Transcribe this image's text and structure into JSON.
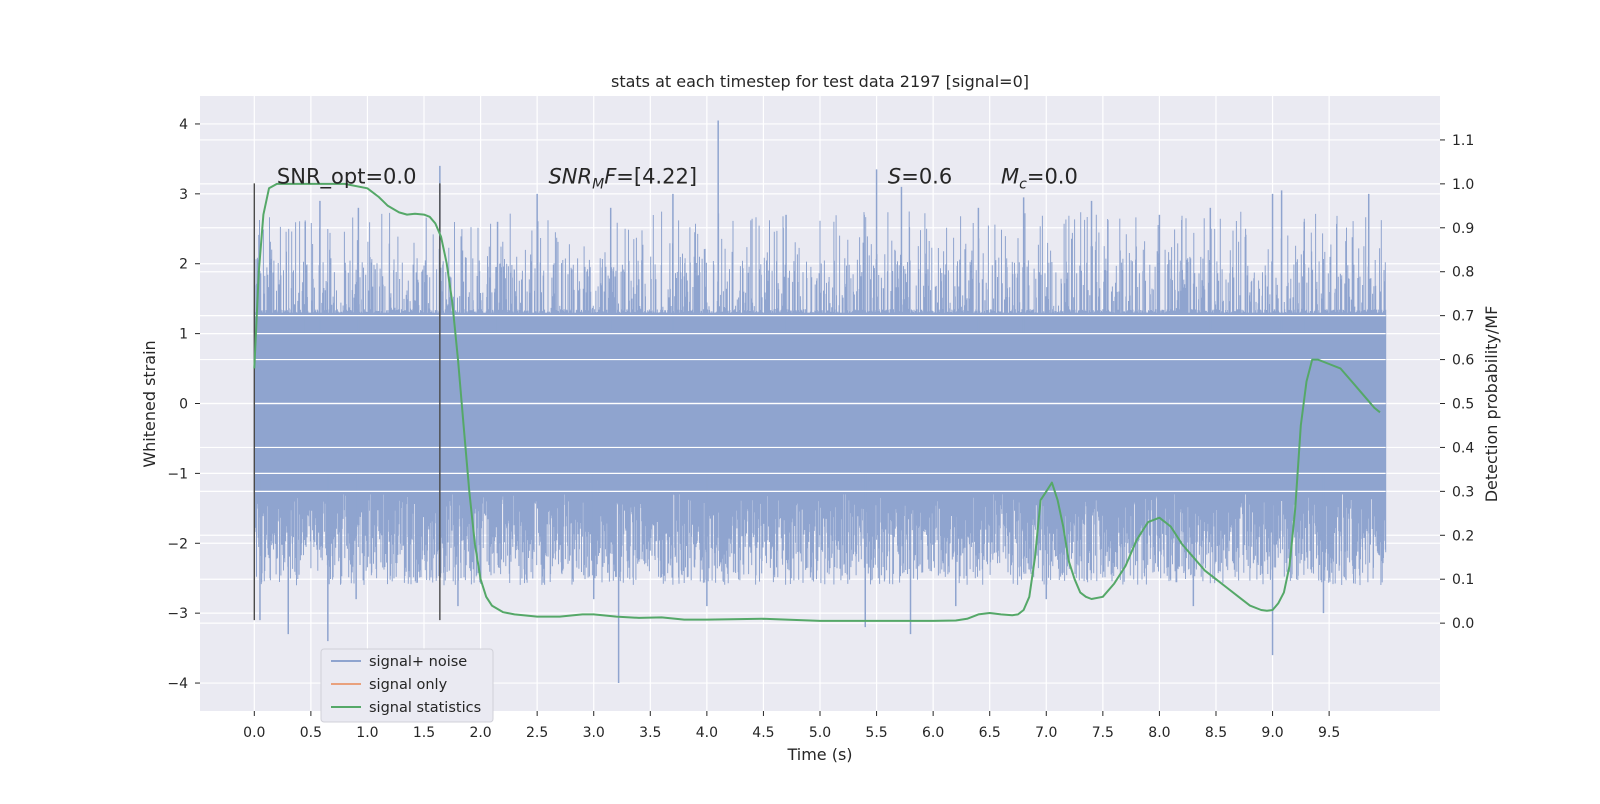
{
  "chart_data": {
    "type": "line",
    "title": "stats at each timestep for test data 2197 [signal=0]",
    "xlabel": "Time (s)",
    "ylabel_left": "Whitened strain",
    "ylabel_right": "Detection probability/MF",
    "xlim": [
      -0.48,
      10.48
    ],
    "ylim_left": [
      -4.4,
      4.4
    ],
    "ylim_right": [
      -0.2,
      1.2
    ],
    "xticks": [
      "0.0",
      "0.5",
      "1.0",
      "1.5",
      "2.0",
      "2.5",
      "3.0",
      "3.5",
      "4.0",
      "4.5",
      "5.0",
      "5.5",
      "6.0",
      "6.5",
      "7.0",
      "7.5",
      "8.0",
      "8.5",
      "9.0",
      "9.5"
    ],
    "yticks_left": [
      "4",
      "3",
      "2",
      "1",
      "0",
      "−1",
      "−2",
      "−3",
      "−4"
    ],
    "yticks_right": [
      "1.1",
      "1.0",
      "0.9",
      "0.8",
      "0.7",
      "0.6",
      "0.5",
      "0.4",
      "0.3",
      "0.2",
      "0.1",
      "0.0"
    ],
    "grid": true,
    "legend_position": "lower-left",
    "annotations": [
      {
        "text": "SNR_opt=0.0",
        "x": 0.2,
        "y": 3.25
      },
      {
        "base": "SNR",
        "sub": "M",
        "tail": "F=[4.22]",
        "x": 2.6,
        "y": 3.25
      },
      {
        "base": "S",
        "sub": "",
        "tail": "=0.6",
        "x": 5.6,
        "y": 3.25
      },
      {
        "base": "M",
        "sub": "c",
        "tail": "=0.0",
        "x": 6.6,
        "y": 3.25
      }
    ],
    "vlines": [
      {
        "x": 0.0,
        "ymin": -3.1,
        "ymax": 3.15
      },
      {
        "x": 1.64,
        "ymin": -3.1,
        "ymax": 3.15
      }
    ],
    "series": [
      {
        "name": "signal+ noise",
        "color": "#8fa4cf",
        "axis": "left",
        "t_start": 0.0,
        "t_end": 10.0,
        "dense_band": [
          -1.3,
          1.3
        ],
        "peaks": [
          {
            "x": 0.45,
            "y": 2.6
          },
          {
            "x": 0.58,
            "y": 2.9
          },
          {
            "x": 0.92,
            "y": 2.8
          },
          {
            "x": 1.64,
            "y": 3.4
          },
          {
            "x": 2.15,
            "y": 2.6
          },
          {
            "x": 2.5,
            "y": 3.0
          },
          {
            "x": 3.15,
            "y": 2.8
          },
          {
            "x": 3.7,
            "y": 3.0
          },
          {
            "x": 4.1,
            "y": 4.05
          },
          {
            "x": 4.7,
            "y": 2.7
          },
          {
            "x": 5.5,
            "y": 3.35
          },
          {
            "x": 5.72,
            "y": 3.1
          },
          {
            "x": 6.4,
            "y": 2.8
          },
          {
            "x": 6.8,
            "y": 2.95
          },
          {
            "x": 7.4,
            "y": 2.9
          },
          {
            "x": 8.0,
            "y": 2.7
          },
          {
            "x": 8.45,
            "y": 2.8
          },
          {
            "x": 9.0,
            "y": 3.0
          },
          {
            "x": 9.08,
            "y": 3.05
          },
          {
            "x": 9.28,
            "y": 2.6
          },
          {
            "x": 9.85,
            "y": 3.0
          }
        ],
        "troughs": [
          {
            "x": 0.05,
            "y": -3.1
          },
          {
            "x": 0.3,
            "y": -3.3
          },
          {
            "x": 0.65,
            "y": -3.4
          },
          {
            "x": 0.9,
            "y": -2.8
          },
          {
            "x": 1.8,
            "y": -2.9
          },
          {
            "x": 3.0,
            "y": -2.8
          },
          {
            "x": 3.22,
            "y": -4.0
          },
          {
            "x": 4.0,
            "y": -2.9
          },
          {
            "x": 5.4,
            "y": -3.2
          },
          {
            "x": 5.8,
            "y": -3.3
          },
          {
            "x": 6.2,
            "y": -2.9
          },
          {
            "x": 7.0,
            "y": -2.8
          },
          {
            "x": 8.3,
            "y": -2.9
          },
          {
            "x": 9.0,
            "y": -3.6
          },
          {
            "x": 9.45,
            "y": -3.0
          }
        ]
      },
      {
        "name": "signal only",
        "color": "#e9a17d",
        "axis": "left",
        "x": [],
        "y": []
      },
      {
        "name": "signal statistics",
        "color": "#55a868",
        "axis": "right",
        "x": [
          0.0,
          0.04,
          0.08,
          0.13,
          0.2,
          0.3,
          0.5,
          0.8,
          1.0,
          1.1,
          1.18,
          1.28,
          1.35,
          1.42,
          1.5,
          1.55,
          1.6,
          1.65,
          1.7,
          1.75,
          1.8,
          1.85,
          1.9,
          1.95,
          2.0,
          2.05,
          2.1,
          2.2,
          2.3,
          2.5,
          2.7,
          2.9,
          3.0,
          3.2,
          3.4,
          3.6,
          3.8,
          4.0,
          4.5,
          5.0,
          5.5,
          6.0,
          6.2,
          6.3,
          6.4,
          6.5,
          6.6,
          6.7,
          6.75,
          6.8,
          6.85,
          6.9,
          6.95,
          7.0,
          7.05,
          7.1,
          7.15,
          7.2,
          7.25,
          7.3,
          7.35,
          7.4,
          7.5,
          7.6,
          7.7,
          7.8,
          7.9,
          8.0,
          8.1,
          8.2,
          8.3,
          8.4,
          8.5,
          8.6,
          8.7,
          8.8,
          8.9,
          8.95,
          9.0,
          9.05,
          9.1,
          9.15,
          9.2,
          9.25,
          9.3,
          9.35,
          9.4,
          9.5,
          9.6,
          9.7,
          9.8,
          9.9,
          9.95
        ],
        "y": [
          0.58,
          0.8,
          0.93,
          0.99,
          1.0,
          1.0,
          1.0,
          1.0,
          0.99,
          0.97,
          0.95,
          0.935,
          0.93,
          0.932,
          0.93,
          0.925,
          0.91,
          0.88,
          0.82,
          0.73,
          0.6,
          0.45,
          0.3,
          0.18,
          0.1,
          0.06,
          0.04,
          0.025,
          0.02,
          0.015,
          0.015,
          0.02,
          0.02,
          0.015,
          0.012,
          0.013,
          0.008,
          0.008,
          0.01,
          0.005,
          0.005,
          0.005,
          0.006,
          0.01,
          0.02,
          0.023,
          0.02,
          0.018,
          0.02,
          0.03,
          0.06,
          0.15,
          0.28,
          0.3,
          0.32,
          0.28,
          0.22,
          0.14,
          0.1,
          0.07,
          0.06,
          0.055,
          0.06,
          0.09,
          0.13,
          0.19,
          0.23,
          0.24,
          0.22,
          0.18,
          0.15,
          0.12,
          0.1,
          0.08,
          0.06,
          0.04,
          0.03,
          0.028,
          0.03,
          0.045,
          0.07,
          0.13,
          0.26,
          0.45,
          0.55,
          0.6,
          0.6,
          0.59,
          0.58,
          0.55,
          0.52,
          0.49,
          0.48
        ]
      }
    ]
  }
}
